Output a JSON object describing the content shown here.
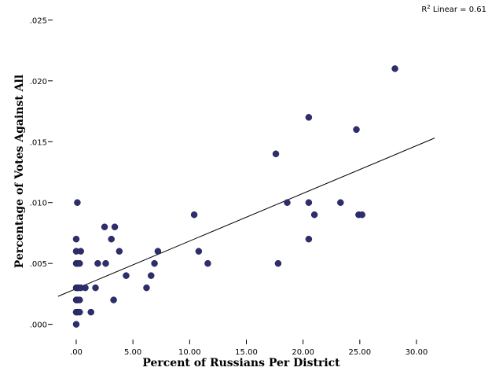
{
  "chart_data": {
    "type": "scatter",
    "xlabel": "Percent of Russians Per District",
    "ylabel": "Percentage of Votes Against All",
    "xlim": [
      -1.8,
      31.8
    ],
    "ylim": [
      -0.0008,
      0.0258
    ],
    "x_ticks": [
      0,
      5,
      10,
      15,
      20,
      25,
      30
    ],
    "x_tick_labels": [
      ".00",
      "5.00",
      "10.00",
      "15.00",
      "20.00",
      "25.00",
      "30.00"
    ],
    "y_ticks": [
      0,
      0.005,
      0.01,
      0.015,
      0.02,
      0.025
    ],
    "y_tick_labels": [
      ".000",
      ".005",
      ".010",
      ".015",
      ".020",
      ".025"
    ],
    "r2_label_prefix": "R",
    "r2_label_sup": "2",
    "r2_label_suffix": " Linear = 0.61",
    "fit_line": {
      "x": [
        -1.6,
        31.6
      ],
      "y": [
        0.0023,
        0.0153
      ]
    },
    "point_color": "#2e2e6e",
    "line_color": "#000000",
    "points": [
      {
        "x": 0.0,
        "y": 0.0
      },
      {
        "x": 0.0,
        "y": 0.001
      },
      {
        "x": 0.1,
        "y": 0.001
      },
      {
        "x": 0.3,
        "y": 0.001
      },
      {
        "x": 0.0,
        "y": 0.002
      },
      {
        "x": 0.1,
        "y": 0.002
      },
      {
        "x": 0.3,
        "y": 0.002
      },
      {
        "x": 0.0,
        "y": 0.003
      },
      {
        "x": 0.1,
        "y": 0.003
      },
      {
        "x": 0.2,
        "y": 0.003
      },
      {
        "x": 0.4,
        "y": 0.003
      },
      {
        "x": 0.8,
        "y": 0.003
      },
      {
        "x": 0.0,
        "y": 0.005
      },
      {
        "x": 0.1,
        "y": 0.005
      },
      {
        "x": 0.3,
        "y": 0.005
      },
      {
        "x": 0.0,
        "y": 0.006
      },
      {
        "x": 0.4,
        "y": 0.006
      },
      {
        "x": 0.0,
        "y": 0.007
      },
      {
        "x": 0.1,
        "y": 0.01
      },
      {
        "x": 1.3,
        "y": 0.001
      },
      {
        "x": 1.7,
        "y": 0.003
      },
      {
        "x": 1.9,
        "y": 0.005
      },
      {
        "x": 2.5,
        "y": 0.008
      },
      {
        "x": 2.6,
        "y": 0.005
      },
      {
        "x": 3.1,
        "y": 0.007
      },
      {
        "x": 3.3,
        "y": 0.002
      },
      {
        "x": 3.4,
        "y": 0.008
      },
      {
        "x": 3.8,
        "y": 0.006
      },
      {
        "x": 4.4,
        "y": 0.004
      },
      {
        "x": 6.2,
        "y": 0.003
      },
      {
        "x": 6.6,
        "y": 0.004
      },
      {
        "x": 6.9,
        "y": 0.005
      },
      {
        "x": 7.2,
        "y": 0.006
      },
      {
        "x": 10.4,
        "y": 0.009
      },
      {
        "x": 10.8,
        "y": 0.006
      },
      {
        "x": 11.6,
        "y": 0.005
      },
      {
        "x": 17.6,
        "y": 0.014
      },
      {
        "x": 17.8,
        "y": 0.005
      },
      {
        "x": 18.6,
        "y": 0.01
      },
      {
        "x": 20.5,
        "y": 0.017
      },
      {
        "x": 20.5,
        "y": 0.01
      },
      {
        "x": 20.5,
        "y": 0.007
      },
      {
        "x": 21.0,
        "y": 0.009
      },
      {
        "x": 23.3,
        "y": 0.01
      },
      {
        "x": 24.7,
        "y": 0.016
      },
      {
        "x": 24.9,
        "y": 0.009
      },
      {
        "x": 25.2,
        "y": 0.009
      },
      {
        "x": 28.1,
        "y": 0.021
      }
    ]
  }
}
